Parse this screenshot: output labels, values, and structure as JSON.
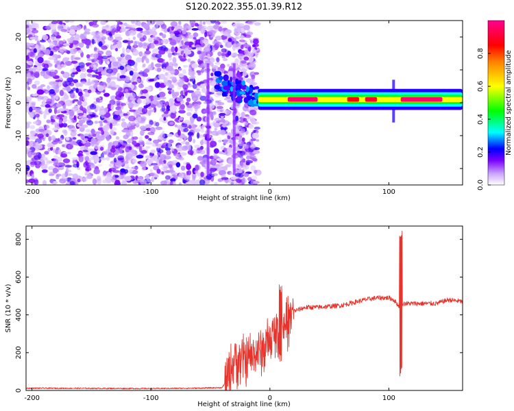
{
  "title": "S120.2022.355.01.39.R12",
  "chart_data": [
    {
      "type": "heatmap",
      "xlabel": "Height of straight line (km)",
      "ylabel": "Frequency (Hz)",
      "xlim": [
        -205,
        162
      ],
      "ylim": [
        -25,
        25
      ],
      "xticks": [
        -200,
        -100,
        0,
        100
      ],
      "yticks": [
        -20,
        -10,
        0,
        10,
        20
      ],
      "colorbar": {
        "label": "Normalized spectral amplitude",
        "range": [
          0,
          1
        ],
        "ticks": [
          0.0,
          0.2,
          0.4,
          0.6,
          0.8
        ]
      },
      "features": {
        "noise_region_km": [
          -205,
          -10
        ],
        "signal_line_km": [
          -10,
          162
        ],
        "signal_freq_hz": 1,
        "spikes_km": [
          -52,
          -30,
          104
        ],
        "strong_segments": [
          {
            "x0": 15,
            "x1": 40,
            "amp": 0.97
          },
          {
            "x0": 65,
            "x1": 75,
            "amp": 0.85
          },
          {
            "x0": 80,
            "x1": 90,
            "amp": 0.9
          },
          {
            "x0": 110,
            "x1": 145,
            "amp": 0.97
          }
        ]
      }
    },
    {
      "type": "line",
      "xlabel": "Height of straight line (km)",
      "ylabel": "SNR (10 * v/v)",
      "xlim": [
        -205,
        162
      ],
      "ylim": [
        0,
        870
      ],
      "xticks": [
        -200,
        -100,
        0,
        100
      ],
      "yticks": [
        0,
        200,
        400,
        600,
        800
      ],
      "series": [
        {
          "name": "SNR",
          "color": "#e8322a",
          "x": [
            -205,
            -150,
            -100,
            -60,
            -40,
            -36,
            -30,
            -20,
            -10,
            -5,
            0,
            5,
            10,
            15,
            20,
            30,
            40,
            60,
            80,
            90,
            100,
            104,
            108,
            110,
            112,
            115,
            120,
            140,
            150,
            162
          ],
          "y": [
            12,
            11,
            10,
            12,
            15,
            60,
            160,
            160,
            200,
            220,
            260,
            300,
            330,
            360,
            420,
            440,
            440,
            450,
            480,
            490,
            490,
            480,
            450,
            440,
            460,
            460,
            460,
            460,
            480,
            470
          ]
        }
      ],
      "spikes": [
        {
          "x": 9,
          "high": 560,
          "low": 150
        },
        {
          "x": 110,
          "high": 865,
          "low": 70
        }
      ]
    }
  ]
}
